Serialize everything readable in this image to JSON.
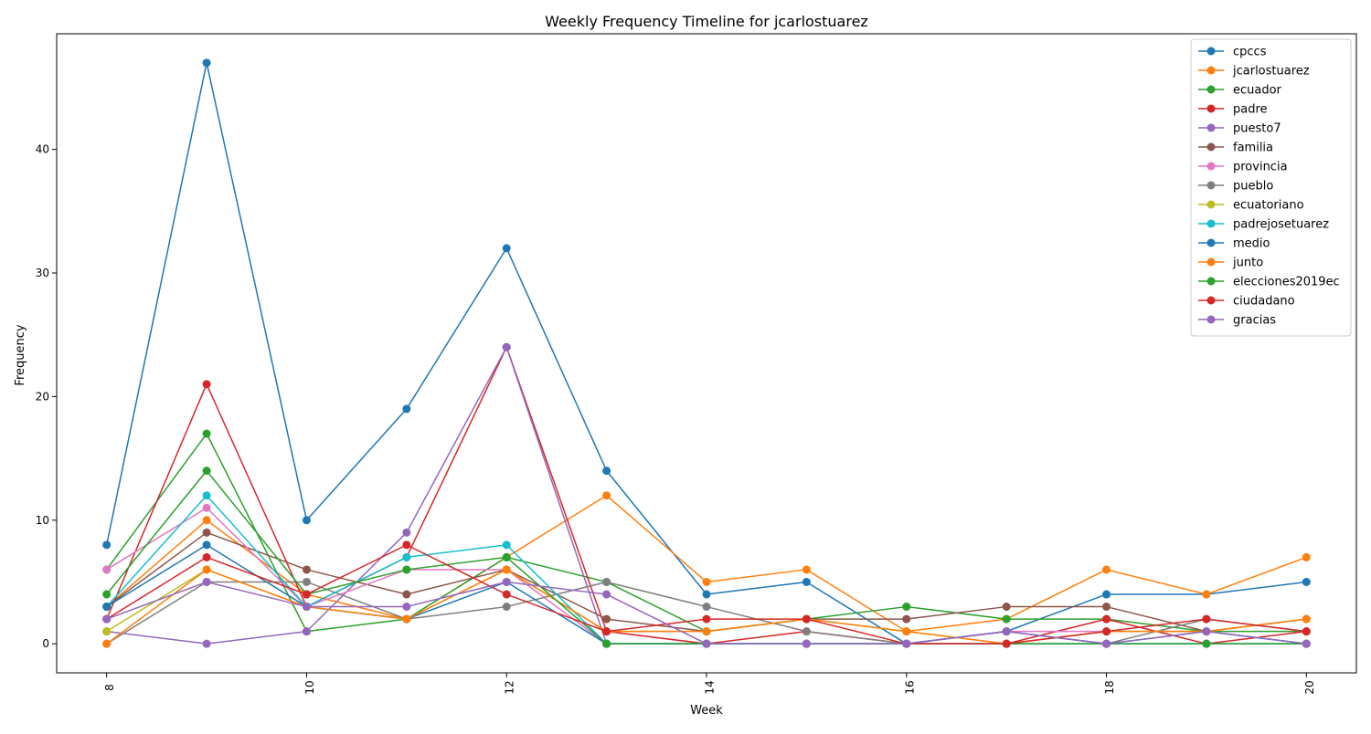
{
  "chart_data": {
    "type": "line",
    "title": "Weekly Frequency Timeline for jcarlostuarez",
    "xlabel": "Week",
    "ylabel": "Frequency",
    "xlim": [
      7.5,
      20.5
    ],
    "ylim": [
      -2.35,
      49.35
    ],
    "x_ticks": [
      8,
      10,
      12,
      14,
      16,
      18,
      20
    ],
    "y_ticks": [
      0,
      10,
      20,
      30,
      40
    ],
    "legend_position": "top-right",
    "grid": false,
    "x": [
      8,
      9,
      10,
      11,
      12,
      13,
      14,
      15,
      16,
      17,
      18,
      19,
      20
    ],
    "series": [
      {
        "name": "cpccs",
        "color": "#1f77b4",
        "values": [
          8,
          47,
          10,
          19,
          32,
          14,
          4,
          5,
          0,
          1,
          4,
          4,
          5
        ]
      },
      {
        "name": "jcarlostuarez",
        "color": "#ff7f0e",
        "values": [
          3,
          10,
          4,
          2,
          7,
          12,
          5,
          6,
          1,
          2,
          6,
          4,
          7
        ]
      },
      {
        "name": "ecuador",
        "color": "#2ca02c",
        "values": [
          6,
          17,
          1,
          2,
          7,
          5,
          1,
          2,
          3,
          2,
          2,
          1,
          1
        ]
      },
      {
        "name": "padre",
        "color": "#d62728",
        "values": [
          2,
          21,
          3,
          7,
          24,
          1,
          0,
          1,
          0,
          0,
          2,
          0,
          1
        ]
      },
      {
        "name": "puesto7",
        "color": "#9467bd",
        "values": [
          1,
          0,
          1,
          9,
          24,
          0,
          0,
          0,
          0,
          0,
          0,
          0,
          0
        ]
      },
      {
        "name": "familia",
        "color": "#8c564b",
        "values": [
          3,
          9,
          6,
          4,
          6,
          2,
          1,
          2,
          2,
          3,
          3,
          1,
          2
        ]
      },
      {
        "name": "provincia",
        "color": "#e377c2",
        "values": [
          6,
          11,
          3,
          6,
          6,
          0,
          0,
          0,
          0,
          1,
          1,
          1,
          0
        ]
      },
      {
        "name": "pueblo",
        "color": "#7f7f7f",
        "values": [
          0,
          5,
          5,
          2,
          3,
          5,
          3,
          1,
          0,
          1,
          0,
          2,
          1
        ]
      },
      {
        "name": "ecuatoriano",
        "color": "#bcbd22",
        "values": [
          1,
          6,
          3,
          2,
          6,
          1,
          1,
          2,
          1,
          0,
          1,
          1,
          2
        ]
      },
      {
        "name": "padrejosetuarez",
        "color": "#17becf",
        "values": [
          3,
          12,
          3,
          7,
          8,
          0,
          0,
          0,
          0,
          0,
          0,
          0,
          0
        ]
      },
      {
        "name": "medio",
        "color": "#1f77b4",
        "values": [
          3,
          8,
          3,
          2,
          5,
          0,
          0,
          0,
          0,
          1,
          0,
          1,
          0
        ]
      },
      {
        "name": "junto",
        "color": "#ff7f0e",
        "values": [
          0,
          6,
          3,
          2,
          6,
          1,
          1,
          2,
          1,
          0,
          1,
          1,
          2
        ]
      },
      {
        "name": "elecciones2019ec",
        "color": "#2ca02c",
        "values": [
          4,
          14,
          4,
          6,
          7,
          0,
          0,
          0,
          0,
          0,
          0,
          0,
          0
        ]
      },
      {
        "name": "ciudadano",
        "color": "#d62728",
        "values": [
          2,
          7,
          4,
          8,
          4,
          1,
          2,
          2,
          0,
          0,
          1,
          2,
          1
        ]
      },
      {
        "name": "gracias",
        "color": "#9467bd",
        "values": [
          2,
          5,
          3,
          3,
          5,
          4,
          0,
          0,
          0,
          1,
          0,
          1,
          0
        ]
      }
    ]
  }
}
